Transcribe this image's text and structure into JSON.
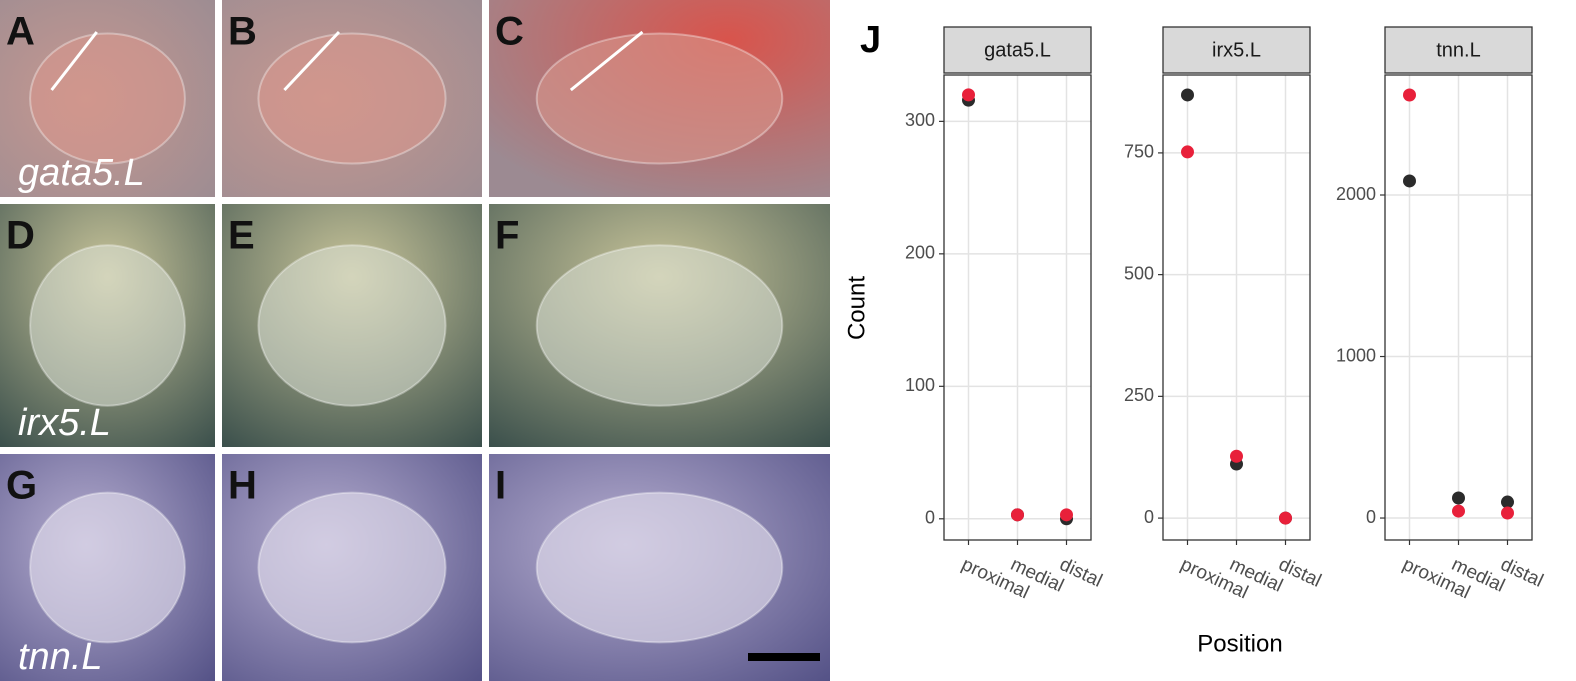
{
  "panels": [
    {
      "letter": "A",
      "label": "gata5.L"
    },
    {
      "letter": "B"
    },
    {
      "letter": "C"
    },
    {
      "letter": "D",
      "label": "irx5.L"
    },
    {
      "letter": "E"
    },
    {
      "letter": "F"
    },
    {
      "letter": "G",
      "label": "tnn.L"
    },
    {
      "letter": "H"
    },
    {
      "letter": "I"
    }
  ],
  "chart_label": "J",
  "y_label": "Count",
  "x_label": "Position",
  "chart_data": [
    {
      "type": "scatter",
      "title": "gata5.L",
      "categories": [
        "proximal",
        "medial",
        "distal"
      ],
      "series": [
        {
          "color": "#2b2b2b",
          "values": [
            316,
            3,
            0
          ]
        },
        {
          "color": "#e8203a",
          "values": [
            320,
            3,
            3
          ]
        }
      ],
      "ylim": [
        -16,
        335
      ],
      "yticks": [
        0,
        100,
        200,
        300
      ],
      "grid": true
    },
    {
      "type": "scatter",
      "title": "irx5.L",
      "categories": [
        "proximal",
        "medial",
        "distal"
      ],
      "series": [
        {
          "color": "#2b2b2b",
          "values": [
            869,
            111,
            0
          ]
        },
        {
          "color": "#e8203a",
          "values": [
            752,
            127,
            0
          ]
        }
      ],
      "ylim": [
        -45,
        910
      ],
      "yticks": [
        0,
        250,
        500,
        750
      ],
      "grid": true
    },
    {
      "type": "scatter",
      "title": "tnn.L",
      "categories": [
        "proximal",
        "medial",
        "distal"
      ],
      "series": [
        {
          "color": "#2b2b2b",
          "values": [
            2087,
            124,
            99
          ]
        },
        {
          "color": "#e8203a",
          "values": [
            2619,
            43,
            31
          ]
        }
      ],
      "ylim": [
        -136,
        2743
      ],
      "yticks": [
        0,
        1000,
        2000
      ],
      "grid": true
    }
  ]
}
